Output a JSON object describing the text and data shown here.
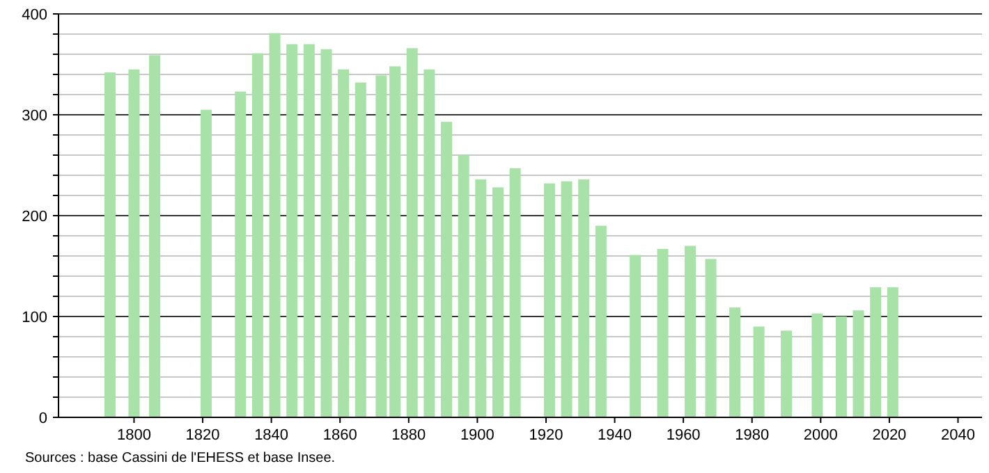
{
  "chart_data": {
    "type": "bar",
    "x": [
      1793,
      1800,
      1806,
      1821,
      1831,
      1836,
      1841,
      1846,
      1851,
      1856,
      1861,
      1866,
      1872,
      1876,
      1881,
      1886,
      1891,
      1896,
      1901,
      1906,
      1911,
      1921,
      1926,
      1931,
      1936,
      1946,
      1954,
      1962,
      1968,
      1975,
      1982,
      1990,
      1999,
      2006,
      2011,
      2016,
      2021
    ],
    "values": [
      342,
      345,
      359,
      305,
      323,
      361,
      381,
      370,
      370,
      365,
      345,
      332,
      339,
      348,
      366,
      345,
      293,
      260,
      236,
      228,
      247,
      232,
      234,
      236,
      190,
      161,
      167,
      170,
      157,
      109,
      90,
      86,
      103,
      100,
      106,
      129,
      129
    ],
    "color": "#a8e2a8",
    "xlim": [
      1778,
      2047
    ],
    "xticks": [
      1800,
      1820,
      1840,
      1860,
      1880,
      1900,
      1920,
      1940,
      1960,
      1980,
      2000,
      2020,
      2040
    ],
    "ylim": [
      0,
      400
    ],
    "yticks": [
      0,
      {
        "value": 20,
        "label": null
      },
      {
        "value": 40,
        "label": null
      },
      {
        "value": 60,
        "label": null
      },
      {
        "value": 80,
        "label": null
      },
      100,
      {
        "value": 120,
        "label": null
      },
      {
        "value": 140,
        "label": null
      },
      {
        "value": 160,
        "label": null
      },
      {
        "value": 180,
        "label": null
      },
      200,
      {
        "value": 220,
        "label": null
      },
      {
        "value": 240,
        "label": null
      },
      {
        "value": 260,
        "label": null
      },
      {
        "value": 280,
        "label": null
      },
      300,
      {
        "value": 320,
        "label": null
      },
      {
        "value": 340,
        "label": null
      },
      {
        "value": 360,
        "label": null
      },
      {
        "value": 380,
        "label": null
      },
      400
    ],
    "grid": true,
    "annotations": [
      "Sources : base Cassini de l'EHESS et base Insee."
    ]
  }
}
